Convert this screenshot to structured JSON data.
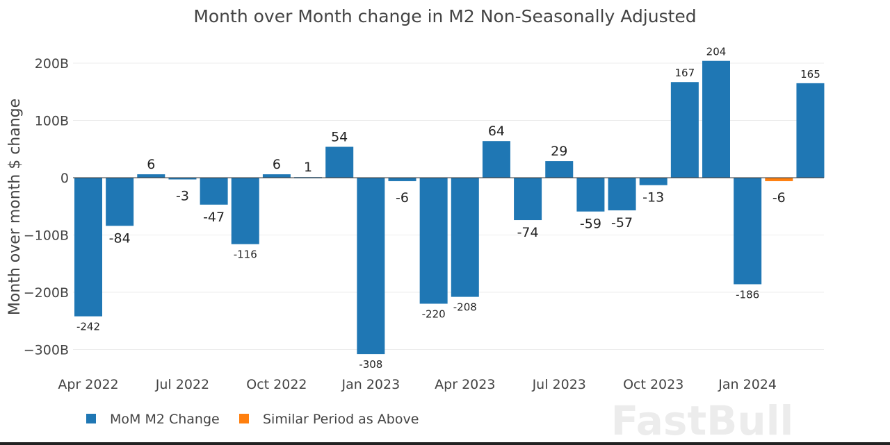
{
  "chart_data": {
    "type": "bar",
    "title": "Month over Month change in M2 Non-Seasonally Adjusted",
    "xlabel": "",
    "ylabel": "Month over month $ change",
    "ylim": [
      -300,
      200
    ],
    "y_unit": "B",
    "yticks": [
      "200B",
      "100B",
      "0",
      "−100B",
      "−200B",
      "−300B"
    ],
    "ytick_values": [
      200,
      100,
      0,
      -100,
      -200,
      -300
    ],
    "xticks": [
      "Apr 2022",
      "Jul 2022",
      "Oct 2022",
      "Jan 2023",
      "Apr 2023",
      "Jul 2023",
      "Oct 2023",
      "Jan 2024"
    ],
    "xtick_months": [
      "2022-04",
      "2022-07",
      "2022-10",
      "2023-01",
      "2023-04",
      "2023-07",
      "2023-10",
      "2024-01"
    ],
    "grid": true,
    "legend_position": "bottom-left",
    "categories": [
      "2022-04",
      "2022-05",
      "2022-06",
      "2022-07",
      "2022-08",
      "2022-09",
      "2022-10",
      "2022-11",
      "2022-12",
      "2023-01",
      "2023-02",
      "2023-03",
      "2023-04",
      "2023-05",
      "2023-06",
      "2023-07",
      "2023-08",
      "2023-09",
      "2023-10",
      "2023-11",
      "2023-12",
      "2024-01",
      "2024-02",
      "2024-03"
    ],
    "series": [
      {
        "name": "MoM M2 Change",
        "color": "#1f77b4",
        "values": [
          -242,
          -84,
          6,
          -3,
          -47,
          -116,
          6,
          1,
          54,
          -308,
          -6,
          -220,
          -208,
          64,
          -74,
          29,
          -59,
          -57,
          -13,
          167,
          204,
          -186,
          null,
          165
        ]
      },
      {
        "name": "Similar Period as Above",
        "color": "#ff7f0e",
        "values": [
          null,
          null,
          null,
          null,
          null,
          null,
          null,
          null,
          null,
          null,
          null,
          null,
          null,
          null,
          null,
          null,
          null,
          null,
          null,
          null,
          null,
          null,
          -6,
          null
        ]
      }
    ]
  },
  "watermark": "FastBull"
}
